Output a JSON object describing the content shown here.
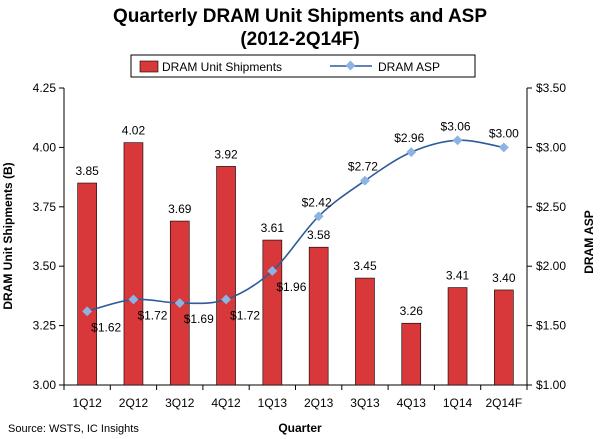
{
  "chart_data": {
    "type": "bar-line",
    "title": "Quarterly DRAM Unit Shipments and ASP",
    "subtitle": "(2012-2Q14F)",
    "xlabel": "Quarter",
    "ylabel": "DRAM Unit Shipments (B)",
    "y2label": "DRAM ASP",
    "categories": [
      "1Q12",
      "2Q12",
      "3Q12",
      "4Q12",
      "1Q13",
      "2Q13",
      "3Q13",
      "4Q13",
      "1Q14",
      "2Q14F"
    ],
    "ylim": [
      3.0,
      4.25
    ],
    "y_ticks": [
      "3.00",
      "3.25",
      "3.50",
      "3.75",
      "4.00",
      "4.25"
    ],
    "y2lim": [
      1.0,
      3.5
    ],
    "y2_ticks": [
      "$1.00",
      "$1.50",
      "$2.00",
      "$2.50",
      "$3.00",
      "$3.50"
    ],
    "grid": false,
    "legend_position": "top",
    "series": [
      {
        "name": "DRAM Unit Shipments",
        "type": "bar",
        "axis": "left",
        "color": "#d9383a",
        "values": [
          3.85,
          4.02,
          3.69,
          3.92,
          3.61,
          3.58,
          3.45,
          3.26,
          3.41,
          3.4
        ],
        "labels": [
          "3.85",
          "4.02",
          "3.69",
          "3.92",
          "3.61",
          "3.58",
          "3.45",
          "3.26",
          "3.41",
          "3.40"
        ]
      },
      {
        "name": "DRAM ASP",
        "type": "line",
        "axis": "right",
        "color": "#2e5b9a",
        "marker_color": "#8db3e2",
        "values": [
          1.62,
          1.72,
          1.69,
          1.72,
          1.96,
          2.42,
          2.72,
          2.96,
          3.06,
          3.0
        ],
        "labels": [
          "$1.62",
          "$1.72",
          "$1.69",
          "$1.72",
          "$1.96",
          "$2.42",
          "$2.72",
          "$2.96",
          "$3.06",
          "$3.00"
        ]
      }
    ],
    "source": "Source: WSTS, IC Insights"
  }
}
